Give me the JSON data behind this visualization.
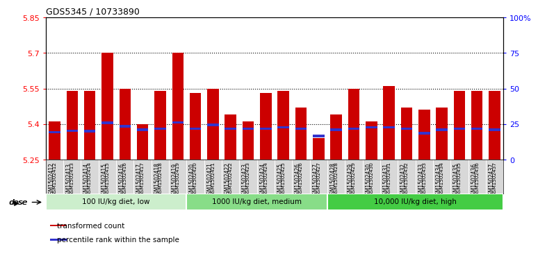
{
  "title": "GDS5345 / 10733890",
  "samples": [
    "GSM1502412",
    "GSM1502413",
    "GSM1502414",
    "GSM1502415",
    "GSM1502416",
    "GSM1502417",
    "GSM1502418",
    "GSM1502419",
    "GSM1502420",
    "GSM1502421",
    "GSM1502422",
    "GSM1502423",
    "GSM1502424",
    "GSM1502425",
    "GSM1502426",
    "GSM1502427",
    "GSM1502428",
    "GSM1502429",
    "GSM1502430",
    "GSM1502431",
    "GSM1502432",
    "GSM1502433",
    "GSM1502434",
    "GSM1502435",
    "GSM1502436",
    "GSM1502437"
  ],
  "bar_values": [
    5.41,
    5.54,
    5.54,
    5.7,
    5.55,
    5.4,
    5.54,
    5.7,
    5.53,
    5.55,
    5.44,
    5.41,
    5.53,
    5.54,
    5.47,
    5.34,
    5.44,
    5.55,
    5.41,
    5.56,
    5.47,
    5.46,
    5.47,
    5.54,
    5.54,
    5.54
  ],
  "blue_values": [
    5.366,
    5.372,
    5.371,
    5.405,
    5.39,
    5.376,
    5.381,
    5.407,
    5.381,
    5.396,
    5.381,
    5.381,
    5.381,
    5.386,
    5.381,
    5.35,
    5.376,
    5.381,
    5.386,
    5.386,
    5.381,
    5.361,
    5.376,
    5.381,
    5.381,
    5.376
  ],
  "ymin": 5.25,
  "ymax": 5.85,
  "yticks": [
    5.25,
    5.4,
    5.55,
    5.7,
    5.85
  ],
  "ytick_labels": [
    "5.25",
    "5.4",
    "5.55",
    "5.7",
    "5.85"
  ],
  "right_ytick_positions": [
    0.0,
    0.25,
    0.5,
    0.75,
    1.0
  ],
  "right_ytick_labels": [
    "0",
    "25",
    "50",
    "75",
    "100%"
  ],
  "dotted_lines": [
    5.4,
    5.55,
    5.7
  ],
  "bar_color": "#cc0000",
  "blue_color": "#3333cc",
  "bg_color": "#ffffff",
  "plot_area_bg": "#ffffff",
  "groups": [
    {
      "label": "100 IU/kg diet, low",
      "start": 0,
      "end": 7,
      "color": "#cceecc"
    },
    {
      "label": "1000 IU/kg diet, medium",
      "start": 8,
      "end": 15,
      "color": "#88dd88"
    },
    {
      "label": "10,000 IU/kg diet, high",
      "start": 16,
      "end": 25,
      "color": "#44cc44"
    }
  ],
  "dose_label": "dose",
  "legend": [
    {
      "label": "transformed count",
      "color": "#cc0000"
    },
    {
      "label": "percentile rank within the sample",
      "color": "#3333cc"
    }
  ]
}
